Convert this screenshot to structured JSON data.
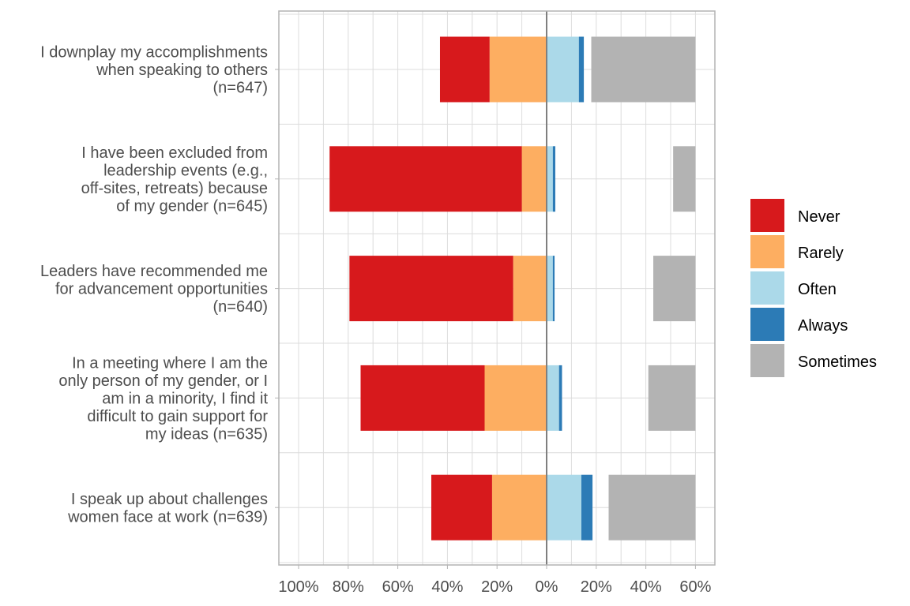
{
  "chart_data": {
    "type": "bar",
    "orientation": "horizontal",
    "stacking": "diverging",
    "title": "",
    "xlabel": "",
    "ylabel": "",
    "xlim": [
      -100,
      60
    ],
    "grid": true,
    "legend_position": "right",
    "x_ticks": [
      -100,
      -80,
      -60,
      -40,
      -20,
      0,
      20,
      40,
      60
    ],
    "x_tick_labels": [
      "100%",
      "80%",
      "60%",
      "40%",
      "20%",
      "0%",
      "20%",
      "40%",
      "60%"
    ],
    "categories": [
      "I downplay my accomplishments when speaking to others (n=647)",
      "I have been excluded from leadership events (e.g., off-sites, retreats) because of my gender (n=645)",
      "Leaders have recommended me for advancement opportunities (n=640)",
      "In a meeting where I am the only person of my gender, or I am in a minority, I find it difficult to gain support for my ideas (n=635)",
      "I speak up about challenges women face at work (n=639)"
    ],
    "category_lines": [
      [
        "I downplay my accomplishments",
        "when speaking to others",
        "(n=647)"
      ],
      [
        "I have been excluded from",
        "leadership events (e.g.,",
        "off-sites, retreats) because",
        "of my gender (n=645)"
      ],
      [
        "Leaders have recommended me",
        "for advancement opportunities",
        "(n=640)"
      ],
      [
        "In a meeting where I am the",
        "only person of my gender, or I",
        "am in a minority, I find it",
        "difficult to gain support for",
        "my ideas (n=635)"
      ],
      [
        "I speak up about challenges",
        "women face at work (n=639)"
      ]
    ],
    "series": [
      {
        "name": "Never",
        "side": "negative",
        "color": "#d7191c",
        "values": [
          20,
          77.5,
          66,
          50,
          24.5
        ]
      },
      {
        "name": "Rarely",
        "side": "negative",
        "color": "#fdae61",
        "values": [
          23,
          10,
          13.5,
          25,
          22
        ]
      },
      {
        "name": "Often",
        "side": "positive",
        "color": "#abd9e9",
        "values": [
          13,
          2.5,
          2.5,
          5,
          14
        ]
      },
      {
        "name": "Always",
        "side": "positive",
        "color": "#2c7bb6",
        "values": [
          2,
          1,
          0.7,
          1.2,
          4.5
        ]
      },
      {
        "name": "Sometimes",
        "side": "separate-right",
        "color": "#b3b3b3",
        "values": [
          42,
          9,
          17,
          19,
          35
        ]
      }
    ],
    "legend": [
      "Never",
      "Rarely",
      "Often",
      "Always",
      "Sometimes"
    ]
  }
}
